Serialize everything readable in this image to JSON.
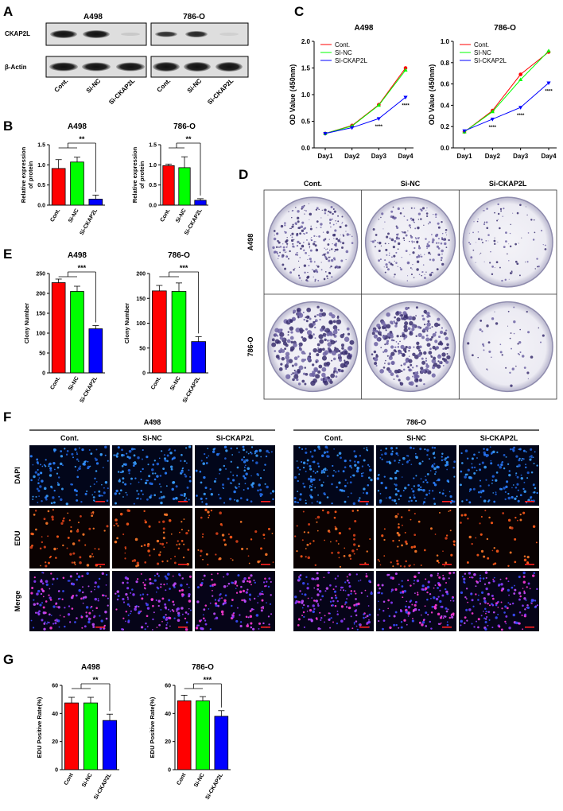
{
  "colors": {
    "ctrl": "#ff0000",
    "nc": "#00ff00",
    "si": "#0000ff"
  },
  "panels": {
    "A": "A",
    "B": "B",
    "C": "C",
    "D": "D",
    "E": "E",
    "F": "F",
    "G": "G"
  },
  "blot": {
    "cells": [
      "A498",
      "786-O"
    ],
    "proteins": [
      "CKAP2L",
      "β-Actin"
    ],
    "lanes": [
      "Cont.",
      "Si-NC",
      "Si-CKAP2L"
    ]
  },
  "charts": {
    "B": [
      {
        "type": "bar",
        "title": "A498",
        "ylabel": "Relative expression of protein",
        "ylabel_lines": [
          "Relative expression",
          "of protein"
        ],
        "categories": [
          "Cont.",
          "Si-NC",
          "Si-CKAP2L"
        ],
        "values": [
          0.91,
          1.07,
          0.15
        ],
        "errors": [
          0.22,
          0.12,
          0.1
        ],
        "ylim": [
          0,
          1.5
        ],
        "yticks": [
          "0.0",
          "0.5",
          "1.0",
          "1.5"
        ],
        "sig": "**"
      },
      {
        "type": "bar",
        "title": "786-O",
        "ylabel": "Relative expression of protein",
        "ylabel_lines": [
          "Relative expression",
          "of protein"
        ],
        "categories": [
          "Cont.",
          "Si-NC",
          "Si-CKAP2L"
        ],
        "values": [
          0.98,
          0.93,
          0.12
        ],
        "errors": [
          0.04,
          0.27,
          0.04
        ],
        "ylim": [
          0,
          1.5
        ],
        "yticks": [
          "0.0",
          "0.5",
          "1.0",
          "1.5"
        ],
        "sig": "**"
      }
    ],
    "C": [
      {
        "type": "line",
        "title": "A498",
        "ylabel": "OD Value (450nm)",
        "x": [
          "Day1",
          "Day2",
          "Day3",
          "Day4"
        ],
        "ylim": [
          0,
          2.0
        ],
        "yticks": [
          "0.0",
          "0.5",
          "1.0",
          "1.5",
          "2.0"
        ],
        "series": [
          {
            "name": "Cont.",
            "values": [
              0.27,
              0.42,
              0.81,
              1.5
            ]
          },
          {
            "name": "SI-NC",
            "values": [
              0.27,
              0.41,
              0.8,
              1.46
            ]
          },
          {
            "name": "SI-CKAP2L",
            "values": [
              0.27,
              0.38,
              0.55,
              0.95
            ]
          }
        ],
        "stars": [
          "",
          "",
          "****",
          "****"
        ]
      },
      {
        "type": "line",
        "title": "786-O",
        "ylabel": "OD Value (450nm)",
        "x": [
          "Day1",
          "Day2",
          "Day3",
          "Day4"
        ],
        "ylim": [
          0,
          1.0
        ],
        "yticks": [
          "0.0",
          "0.2",
          "0.4",
          "0.6",
          "0.8",
          "1.0"
        ],
        "series": [
          {
            "name": "Cont.",
            "values": [
              0.15,
              0.35,
              0.69,
              0.9
            ]
          },
          {
            "name": "SI-NC",
            "values": [
              0.15,
              0.34,
              0.64,
              0.91
            ]
          },
          {
            "name": "SI-CKAP2L",
            "values": [
              0.16,
              0.27,
              0.38,
              0.61
            ]
          }
        ],
        "stars": [
          "",
          "****",
          "****",
          "****"
        ]
      }
    ],
    "E": [
      {
        "type": "bar",
        "title": "A498",
        "ylabel": "Clony Number",
        "categories": [
          "Cont.",
          "Si-NC",
          "Si-CKAP2L"
        ],
        "values": [
          227,
          205,
          111
        ],
        "errors": [
          9,
          13,
          8
        ],
        "ylim": [
          0,
          250
        ],
        "yticks": [
          "0",
          "50",
          "100",
          "150",
          "200",
          "250"
        ],
        "sig": "***"
      },
      {
        "type": "bar",
        "title": "786-O",
        "ylabel": "Clony Number",
        "categories": [
          "Cont.",
          "Si-NC",
          "Si-CKAP2L"
        ],
        "values": [
          165,
          164,
          63
        ],
        "errors": [
          11,
          17,
          10
        ],
        "ylim": [
          0,
          200
        ],
        "yticks": [
          "0",
          "50",
          "100",
          "150",
          "200"
        ],
        "sig": "***"
      }
    ],
    "G": [
      {
        "type": "bar",
        "title": "A498",
        "ylabel": "EDU Positive Rate(%)",
        "categories": [
          "Cont",
          "Si-NC",
          "Si-CKAP2L"
        ],
        "values": [
          47.5,
          47.5,
          35
        ],
        "errors": [
          4,
          4,
          4.5
        ],
        "ylim": [
          0,
          60
        ],
        "yticks": [
          "0",
          "20",
          "40",
          "60"
        ],
        "sig": "**"
      },
      {
        "type": "bar",
        "title": "786-O",
        "ylabel": "EDU Positive Rate(%)",
        "categories": [
          "Cont",
          "Si-NC",
          "Si-CKAP2L"
        ],
        "values": [
          49,
          49,
          38
        ],
        "errors": [
          4,
          3,
          4
        ],
        "ylim": [
          0,
          60
        ],
        "yticks": [
          "0",
          "20",
          "40",
          "60"
        ],
        "sig": "***"
      }
    ]
  },
  "colony": {
    "cols": [
      "Cont.",
      "Si-NC",
      "Si-CKAP2L"
    ],
    "rows": [
      "A498",
      "786-O"
    ]
  },
  "edu": {
    "cells": [
      "A498",
      "786-O"
    ],
    "cols": [
      "Cont.",
      "Si-NC",
      "Si-CKAP2L"
    ],
    "rows": [
      "DAPI",
      "EDU",
      "Merge"
    ]
  }
}
